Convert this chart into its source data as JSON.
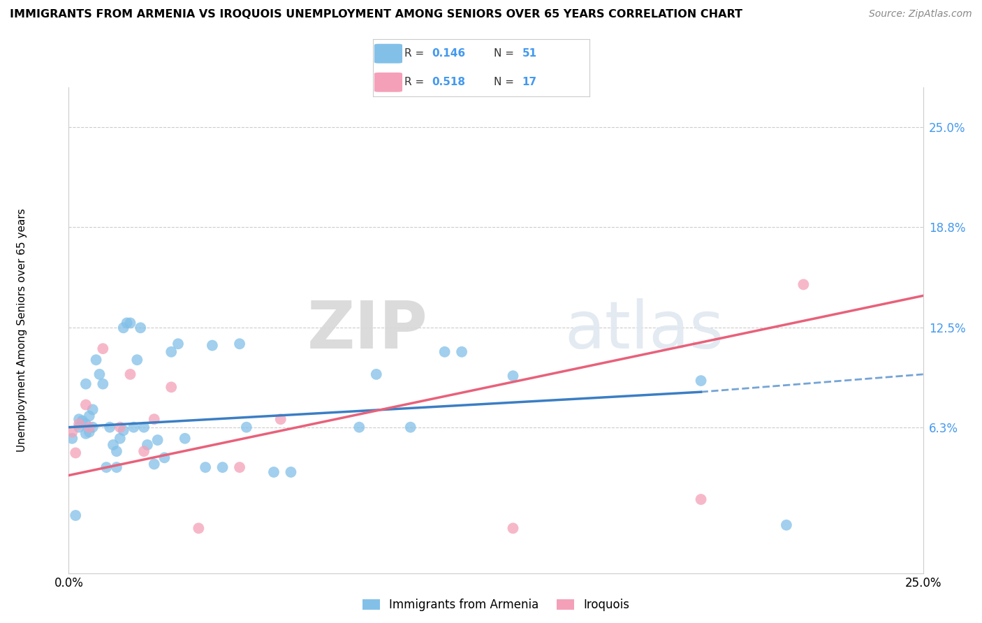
{
  "title": "IMMIGRANTS FROM ARMENIA VS IROQUOIS UNEMPLOYMENT AMONG SENIORS OVER 65 YEARS CORRELATION CHART",
  "source": "Source: ZipAtlas.com",
  "ylabel": "Unemployment Among Seniors over 65 years",
  "xlim": [
    0.0,
    0.25
  ],
  "ylim": [
    -0.028,
    0.275
  ],
  "xticks": [
    0.0,
    0.05,
    0.1,
    0.15,
    0.2,
    0.25
  ],
  "xticklabels": [
    "0.0%",
    "",
    "",
    "",
    "",
    "25.0%"
  ],
  "ytick_positions": [
    0.063,
    0.125,
    0.188,
    0.25
  ],
  "ytick_labels": [
    "6.3%",
    "12.5%",
    "18.8%",
    "25.0%"
  ],
  "legend_labels": [
    "Immigrants from Armenia",
    "Iroquois"
  ],
  "blue_color": "#82c0e8",
  "pink_color": "#f4a0b8",
  "blue_line_color": "#3b7ec4",
  "pink_line_color": "#e8617a",
  "watermark_zip": "ZIP",
  "watermark_atlas": "atlas",
  "blue_x": [
    0.001,
    0.002,
    0.003,
    0.003,
    0.004,
    0.005,
    0.005,
    0.005,
    0.006,
    0.006,
    0.007,
    0.007,
    0.008,
    0.009,
    0.01,
    0.011,
    0.012,
    0.013,
    0.014,
    0.014,
    0.015,
    0.016,
    0.016,
    0.017,
    0.018,
    0.019,
    0.02,
    0.021,
    0.022,
    0.023,
    0.025,
    0.026,
    0.028,
    0.03,
    0.032,
    0.034,
    0.04,
    0.042,
    0.045,
    0.05,
    0.052,
    0.06,
    0.065,
    0.085,
    0.09,
    0.1,
    0.11,
    0.115,
    0.13,
    0.185,
    0.21
  ],
  "blue_y": [
    0.056,
    0.008,
    0.063,
    0.068,
    0.067,
    0.09,
    0.059,
    0.065,
    0.06,
    0.07,
    0.063,
    0.074,
    0.105,
    0.096,
    0.09,
    0.038,
    0.063,
    0.052,
    0.038,
    0.048,
    0.056,
    0.061,
    0.125,
    0.128,
    0.128,
    0.063,
    0.105,
    0.125,
    0.063,
    0.052,
    0.04,
    0.055,
    0.044,
    0.11,
    0.115,
    0.056,
    0.038,
    0.114,
    0.038,
    0.115,
    0.063,
    0.035,
    0.035,
    0.063,
    0.096,
    0.063,
    0.11,
    0.11,
    0.095,
    0.092,
    0.002
  ],
  "pink_x": [
    0.001,
    0.002,
    0.003,
    0.005,
    0.006,
    0.01,
    0.015,
    0.018,
    0.022,
    0.025,
    0.03,
    0.038,
    0.05,
    0.062,
    0.13,
    0.185,
    0.215
  ],
  "pink_y": [
    0.06,
    0.047,
    0.065,
    0.077,
    0.063,
    0.112,
    0.063,
    0.096,
    0.048,
    0.068,
    0.088,
    0.0,
    0.038,
    0.068,
    0.0,
    0.018,
    0.152
  ],
  "blue_trend": [
    0.0,
    0.185,
    0.063,
    0.085
  ],
  "blue_dash": [
    0.185,
    0.25,
    0.085,
    0.096
  ],
  "pink_trend": [
    0.0,
    0.25,
    0.033,
    0.145
  ]
}
